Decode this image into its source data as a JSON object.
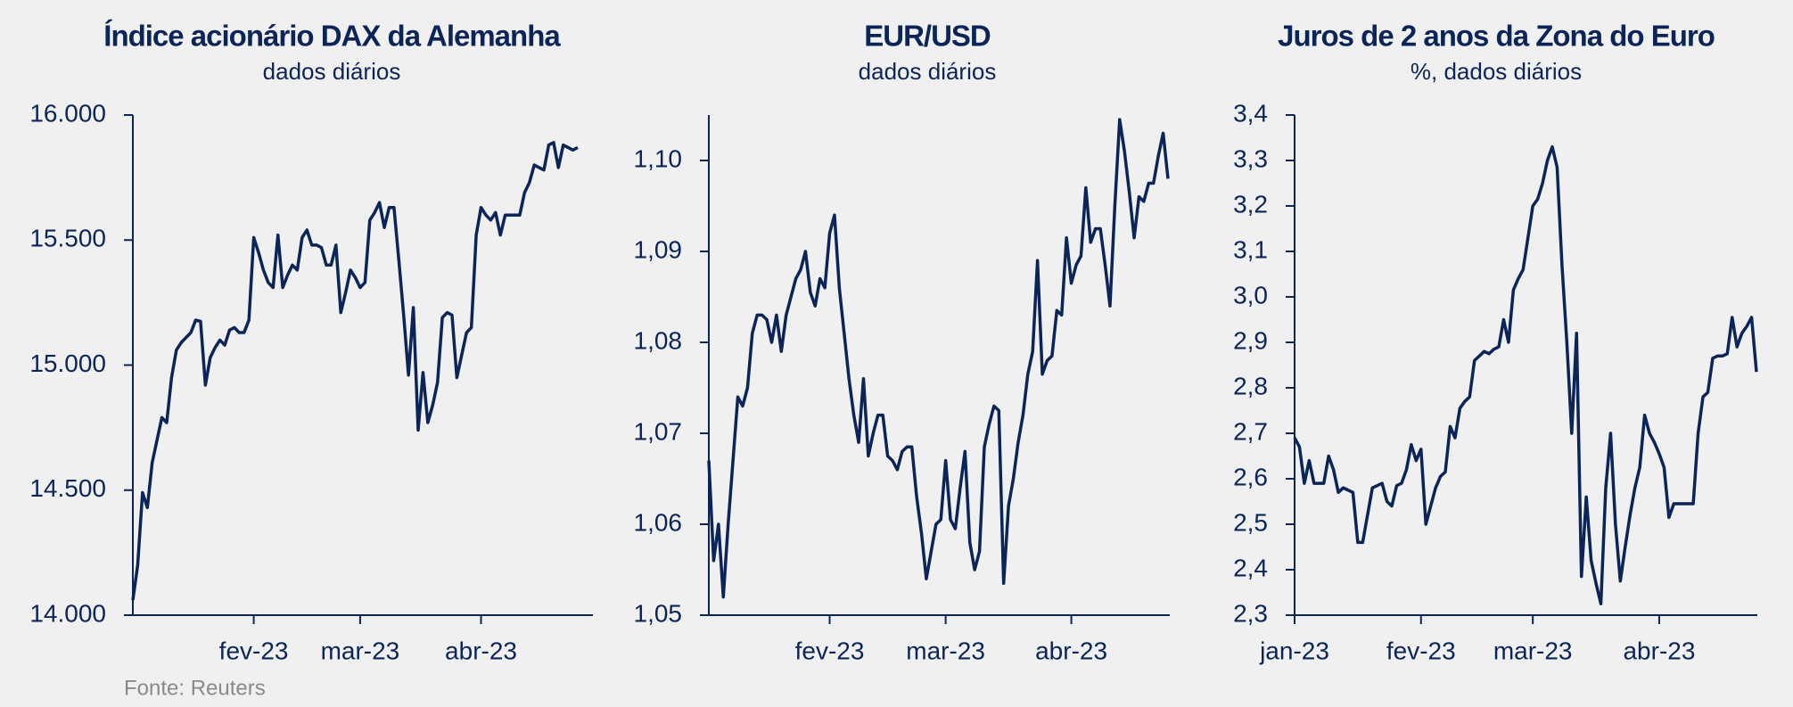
{
  "chart_data": [
    {
      "type": "line",
      "title": "Índice acionário DAX da Alemanha",
      "subtitle": "dados diários",
      "color": "#0b2559",
      "categories": [
        null,
        null,
        null,
        null,
        null,
        null,
        null,
        null,
        null,
        null,
        null,
        null,
        null,
        null,
        null,
        null,
        null,
        null,
        null,
        null,
        null,
        null,
        null,
        null,
        null,
        "fev-23",
        null,
        null,
        null,
        null,
        null,
        null,
        null,
        null,
        null,
        null,
        null,
        null,
        null,
        null,
        null,
        null,
        null,
        null,
        null,
        null,
        null,
        "mar-23",
        null,
        null,
        null,
        null,
        null,
        null,
        null,
        null,
        null,
        null,
        null,
        null,
        null,
        null,
        null,
        null,
        null,
        null,
        null,
        null,
        null,
        null,
        null,
        null,
        "abr-23",
        null,
        null,
        null,
        null,
        null,
        null,
        null,
        null,
        null,
        null,
        null,
        null,
        null,
        null,
        null,
        null,
        null,
        null,
        null,
        null
      ],
      "values": [
        14060,
        14200,
        14490,
        14430,
        14610,
        14700,
        14790,
        14770,
        14950,
        15060,
        15090,
        15110,
        15130,
        15180,
        15175,
        14920,
        15030,
        15070,
        15100,
        15080,
        15140,
        15150,
        15130,
        15130,
        15180,
        15510,
        15450,
        15380,
        15330,
        15310,
        15520,
        15310,
        15360,
        15400,
        15380,
        15510,
        15540,
        15480,
        15480,
        15470,
        15400,
        15400,
        15480,
        15210,
        15290,
        15380,
        15350,
        15310,
        15330,
        15580,
        15610,
        15650,
        15550,
        15630,
        15630,
        15420,
        15200,
        14960,
        15230,
        14740,
        14970,
        14770,
        14840,
        14930,
        15190,
        15210,
        15200,
        14950,
        15040,
        15130,
        15150,
        15520,
        15630,
        15600,
        15580,
        15610,
        15520,
        15600,
        15600,
        15600,
        15600,
        15690,
        15730,
        15800,
        15790,
        15780,
        15880,
        15890,
        15790,
        15880,
        15870,
        15860,
        15870
      ],
      "ylim": [
        14000,
        16000
      ],
      "yticks": [
        {
          "value": 14000,
          "label": "14.000"
        },
        {
          "value": 14500,
          "label": "14.500"
        },
        {
          "value": 15000,
          "label": "15.000"
        },
        {
          "value": 15500,
          "label": "15.500"
        },
        {
          "value": 16000,
          "label": "16.000"
        }
      ]
    },
    {
      "type": "line",
      "title": "EUR/USD",
      "subtitle": "dados diários",
      "color": "#0b2559",
      "categories": [
        null,
        null,
        null,
        null,
        null,
        null,
        null,
        null,
        null,
        null,
        null,
        null,
        null,
        null,
        null,
        null,
        null,
        null,
        null,
        null,
        null,
        null,
        null,
        null,
        null,
        "fev-23",
        null,
        null,
        null,
        null,
        null,
        null,
        null,
        null,
        null,
        null,
        null,
        null,
        null,
        null,
        null,
        null,
        null,
        null,
        null,
        null,
        null,
        null,
        null,
        "mar-23",
        null,
        null,
        null,
        null,
        null,
        null,
        null,
        null,
        null,
        null,
        null,
        null,
        null,
        null,
        null,
        null,
        null,
        null,
        null,
        null,
        null,
        null,
        null,
        null,
        null,
        "abr-23",
        null,
        null,
        null,
        null,
        null,
        null,
        null,
        null,
        null,
        null,
        null,
        null,
        null,
        null,
        null,
        null,
        null,
        null,
        null,
        null
      ],
      "values": [
        1.067,
        1.056,
        1.06,
        1.052,
        1.06,
        1.067,
        1.074,
        1.073,
        1.075,
        1.081,
        1.083,
        1.083,
        1.0825,
        1.08,
        1.083,
        1.079,
        1.083,
        1.085,
        1.087,
        1.088,
        1.09,
        1.0855,
        1.084,
        1.087,
        1.086,
        1.092,
        1.094,
        1.086,
        1.081,
        1.076,
        1.072,
        1.069,
        1.076,
        1.0675,
        1.07,
        1.072,
        1.072,
        1.0675,
        1.067,
        1.066,
        1.068,
        1.0685,
        1.0685,
        1.063,
        1.059,
        1.054,
        1.057,
        1.06,
        1.0605,
        1.067,
        1.0605,
        1.0595,
        1.064,
        1.068,
        1.058,
        1.055,
        1.057,
        1.0685,
        1.071,
        1.073,
        1.0725,
        1.0535,
        1.062,
        1.065,
        1.069,
        1.072,
        1.0765,
        1.079,
        1.089,
        1.0765,
        1.078,
        1.0785,
        1.0835,
        1.083,
        1.0915,
        1.0865,
        1.0885,
        1.0895,
        1.097,
        1.091,
        1.0925,
        1.0925,
        1.0885,
        1.084,
        1.095,
        1.1045,
        1.101,
        1.0965,
        1.0915,
        1.096,
        1.0955,
        1.0975,
        1.0975,
        1.1005,
        1.103,
        1.098
      ],
      "ylim": [
        1.05,
        1.105
      ],
      "yticks": [
        {
          "value": 1.05,
          "label": "1,05"
        },
        {
          "value": 1.06,
          "label": "1,06"
        },
        {
          "value": 1.07,
          "label": "1,07"
        },
        {
          "value": 1.08,
          "label": "1,08"
        },
        {
          "value": 1.09,
          "label": "1,09"
        },
        {
          "value": 1.1,
          "label": "1,10"
        }
      ]
    },
    {
      "type": "line",
      "title": "Juros de 2 anos da Zona do Euro",
      "subtitle": "%, dados diários",
      "color": "#0b2559",
      "categories": [
        "jan-23",
        null,
        null,
        null,
        null,
        null,
        null,
        null,
        null,
        null,
        null,
        null,
        null,
        null,
        null,
        null,
        null,
        null,
        null,
        null,
        null,
        null,
        null,
        null,
        null,
        null,
        "fev-23",
        null,
        null,
        null,
        null,
        null,
        null,
        null,
        null,
        null,
        null,
        null,
        null,
        null,
        null,
        null,
        null,
        null,
        null,
        null,
        null,
        null,
        null,
        "mar-23",
        null,
        null,
        null,
        null,
        null,
        null,
        null,
        null,
        null,
        null,
        null,
        null,
        null,
        null,
        null,
        null,
        null,
        null,
        null,
        null,
        null,
        null,
        null,
        null,
        null,
        "abr-23",
        null,
        null,
        null,
        null,
        null,
        null,
        null,
        null,
        null,
        null,
        null,
        null,
        null,
        null,
        null,
        null,
        null,
        null,
        null,
        null
      ],
      "values": [
        2.69,
        2.67,
        2.59,
        2.64,
        2.59,
        2.59,
        2.59,
        2.65,
        2.62,
        2.57,
        2.58,
        2.575,
        2.57,
        2.46,
        2.46,
        2.52,
        2.58,
        2.585,
        2.59,
        2.55,
        2.54,
        2.585,
        2.59,
        2.62,
        2.675,
        2.64,
        2.665,
        2.5,
        2.54,
        2.58,
        2.605,
        2.615,
        2.715,
        2.69,
        2.755,
        2.77,
        2.78,
        2.86,
        2.87,
        2.88,
        2.875,
        2.885,
        2.89,
        2.95,
        2.9,
        3.015,
        3.04,
        3.06,
        3.13,
        3.2,
        3.215,
        3.25,
        3.3,
        3.33,
        3.285,
        3.07,
        2.9,
        2.7,
        2.92,
        2.385,
        2.56,
        2.42,
        2.37,
        2.325,
        2.58,
        2.7,
        2.5,
        2.375,
        2.45,
        2.52,
        2.58,
        2.625,
        2.74,
        2.7,
        2.68,
        2.655,
        2.625,
        2.515,
        2.545,
        2.545,
        2.545,
        2.545,
        2.545,
        2.7,
        2.78,
        2.79,
        2.865,
        2.87,
        2.87,
        2.875,
        2.955,
        2.89,
        2.92,
        2.935,
        2.955,
        2.835
      ],
      "ylim": [
        2.3,
        3.4
      ],
      "yticks": [
        {
          "value": 2.3,
          "label": "2,3"
        },
        {
          "value": 2.4,
          "label": "2,4"
        },
        {
          "value": 2.5,
          "label": "2,5"
        },
        {
          "value": 2.6,
          "label": "2,6"
        },
        {
          "value": 2.7,
          "label": "2,7"
        },
        {
          "value": 2.8,
          "label": "2,8"
        },
        {
          "value": 2.9,
          "label": "2,9"
        },
        {
          "value": 3.0,
          "label": "3,0"
        },
        {
          "value": 3.1,
          "label": "3,1"
        },
        {
          "value": 3.2,
          "label": "3,2"
        },
        {
          "value": 3.3,
          "label": "3,3"
        },
        {
          "value": 3.4,
          "label": "3,4"
        }
      ]
    }
  ],
  "source": "Fonte: Reuters"
}
